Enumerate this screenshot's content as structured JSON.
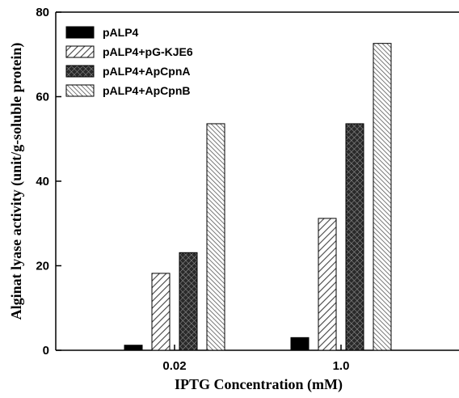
{
  "chart_data": {
    "type": "bar",
    "title": "",
    "xlabel": "IPTG Concentration (mM)",
    "ylabel": "Alginat lyase activity (unit/g-soluble protein)",
    "categories": [
      "0.02",
      "1.0"
    ],
    "ylim": [
      0,
      80
    ],
    "yticks": [
      0,
      20,
      40,
      60,
      80
    ],
    "grid": false,
    "legend_position": "top-left",
    "series": [
      {
        "name": "pALP4",
        "values": [
          1.2,
          3.0
        ],
        "pattern": "solid-black"
      },
      {
        "name": "pALP4+pG-KJE6",
        "values": [
          18.2,
          31.2
        ],
        "pattern": "diagonal-hatch"
      },
      {
        "name": "pALP4+ApCpnA",
        "values": [
          23.1,
          53.6
        ],
        "pattern": "dark-crosshatch"
      },
      {
        "name": "pALP4+ApCpnB",
        "values": [
          53.6,
          72.6
        ],
        "pattern": "dense-diagonal-hatch"
      }
    ]
  }
}
